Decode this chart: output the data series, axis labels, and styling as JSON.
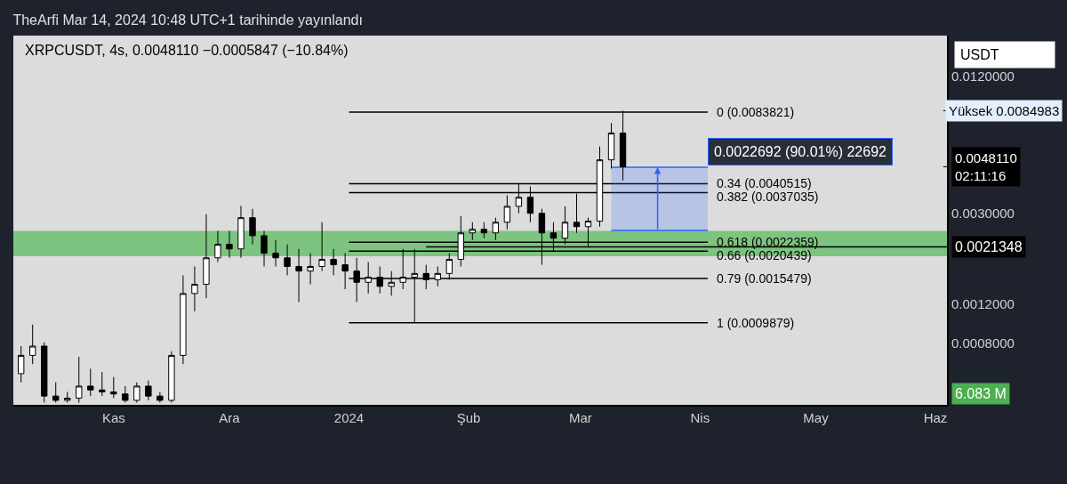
{
  "chart_data": {
    "type": "candlestick",
    "title": "TheArfi Mar 14, 2024 10:48 UTC+1 tarihinde yayınlandı",
    "subtitle": "XRPCUSDT, 4s, 0.0048110 −0.0005847 (−10.84%)",
    "ylabel": "USDT",
    "color": "#000000",
    "x": [
      "2023-10-08",
      "2023-10-11",
      "2023-10-14",
      "2023-10-17",
      "2023-10-20",
      "2023-10-23",
      "2023-10-26",
      "2023-10-29",
      "2023-11-01",
      "2023-11-04",
      "2023-11-07",
      "2023-11-10",
      "2023-11-13",
      "2023-11-16",
      "2023-11-19",
      "2023-11-22",
      "2023-11-25",
      "2023-11-28",
      "2023-12-01",
      "2023-12-04",
      "2023-12-07",
      "2023-12-10",
      "2023-12-13",
      "2023-12-16",
      "2023-12-19",
      "2023-12-22",
      "2023-12-25",
      "2023-12-28",
      "2023-12-31",
      "2024-01-03",
      "2024-01-06",
      "2024-01-09",
      "2024-01-12",
      "2024-01-15",
      "2024-01-18",
      "2024-01-21",
      "2024-01-24",
      "2024-01-27",
      "2024-01-30",
      "2024-02-02",
      "2024-02-05",
      "2024-02-08",
      "2024-02-11",
      "2024-02-14",
      "2024-02-17",
      "2024-02-20",
      "2024-02-23",
      "2024-02-26",
      "2024-02-29",
      "2024-03-03",
      "2024-03-06",
      "2024-03-09",
      "2024-03-12"
    ],
    "ohlc": [
      [
        0.00059,
        0.00078,
        0.00054,
        0.00071
      ],
      [
        0.00071,
        0.00097,
        0.00065,
        0.00078
      ],
      [
        0.00078,
        0.00081,
        0.00044,
        0.00047
      ],
      [
        0.00047,
        0.00054,
        0.00044,
        0.00045
      ],
      [
        0.00045,
        0.00049,
        0.00044,
        0.00046
      ],
      [
        0.00046,
        0.0007,
        0.00044,
        0.00052
      ],
      [
        0.00052,
        0.00062,
        0.00047,
        0.0005
      ],
      [
        0.0005,
        0.0006,
        0.00047,
        0.00049
      ],
      [
        0.00049,
        0.00057,
        0.00046,
        0.00048
      ],
      [
        0.00048,
        0.00052,
        0.00044,
        0.00045
      ],
      [
        0.00045,
        0.00054,
        0.00044,
        0.00052
      ],
      [
        0.00052,
        0.00055,
        0.00045,
        0.00047
      ],
      [
        0.00047,
        0.00049,
        0.00044,
        0.00045
      ],
      [
        0.00045,
        0.00074,
        0.00044,
        0.00071
      ],
      [
        0.00071,
        0.0016,
        0.00065,
        0.00133
      ],
      [
        0.00133,
        0.00175,
        0.00111,
        0.00146
      ],
      [
        0.00146,
        0.00297,
        0.00127,
        0.00191
      ],
      [
        0.00191,
        0.00251,
        0.00183,
        0.00219
      ],
      [
        0.00219,
        0.00251,
        0.00191,
        0.00209
      ],
      [
        0.00209,
        0.00323,
        0.00191,
        0.00287
      ],
      [
        0.00287,
        0.00314,
        0.00219,
        0.00239
      ],
      [
        0.00239,
        0.00251,
        0.00175,
        0.002
      ],
      [
        0.002,
        0.00229,
        0.00175,
        0.00191
      ],
      [
        0.00191,
        0.00219,
        0.0016,
        0.00175
      ],
      [
        0.00175,
        0.00209,
        0.00122,
        0.00167
      ],
      [
        0.00167,
        0.002,
        0.00146,
        0.00175
      ],
      [
        0.00175,
        0.00274,
        0.00167,
        0.00188
      ],
      [
        0.00188,
        0.00209,
        0.0016,
        0.00178
      ],
      [
        0.00178,
        0.002,
        0.00139,
        0.00167
      ],
      [
        0.00167,
        0.00191,
        0.00122,
        0.00149
      ],
      [
        0.00149,
        0.00183,
        0.00133,
        0.00157
      ],
      [
        0.00157,
        0.00175,
        0.00133,
        0.00143
      ],
      [
        0.00143,
        0.00167,
        0.0013,
        0.00149
      ],
      [
        0.00149,
        0.00209,
        0.00139,
        0.00157
      ],
      [
        0.00157,
        0.00209,
        0.0009879,
        0.00163
      ],
      [
        0.00163,
        0.00178,
        0.00139,
        0.00153
      ],
      [
        0.00153,
        0.00175,
        0.00143,
        0.00163
      ],
      [
        0.00163,
        0.002,
        0.00153,
        0.00188
      ],
      [
        0.00188,
        0.00292,
        0.00175,
        0.00246
      ],
      [
        0.00246,
        0.00274,
        0.00229,
        0.00255
      ],
      [
        0.00255,
        0.00274,
        0.00233,
        0.00246
      ],
      [
        0.00246,
        0.00287,
        0.00229,
        0.00274
      ],
      [
        0.00274,
        0.0036,
        0.00255,
        0.00322
      ],
      [
        0.00322,
        0.00408,
        0.003,
        0.00353
      ],
      [
        0.00353,
        0.00394,
        0.00274,
        0.003
      ],
      [
        0.003,
        0.00314,
        0.00178,
        0.00246
      ],
      [
        0.00246,
        0.00274,
        0.00205,
        0.00233
      ],
      [
        0.00233,
        0.00322,
        0.00219,
        0.00274
      ],
      [
        0.00274,
        0.00366,
        0.00246,
        0.00262
      ],
      [
        0.00262,
        0.00287,
        0.00213,
        0.00277
      ],
      [
        0.00277,
        0.00591,
        0.00262,
        0.00516
      ],
      [
        0.00516,
        0.00749,
        0.00472,
        0.00677
      ],
      [
        0.00677,
        0.0084983,
        0.00419,
        0.004811
      ]
    ],
    "series": [
      {
        "type": "line",
        "name": "0 (0.0083821)",
        "color": "#000000",
        "x": [
          "2024-01-01",
          "2024-04-03"
        ],
        "values": [
          0.0083821,
          0.0083821
        ]
      },
      {
        "type": "line",
        "name": "0.34 (0.0040515)",
        "color": "#000000",
        "x": [
          "2024-01-01",
          "2024-04-03"
        ],
        "values": [
          0.0040515,
          0.0040515
        ]
      },
      {
        "type": "line",
        "name": "0.382 (0.0037035)",
        "color": "#000000",
        "x": [
          "2024-01-01",
          "2024-04-03"
        ],
        "values": [
          0.0037035,
          0.0037035
        ]
      },
      {
        "type": "line",
        "name": "0.618 (0.0022359)",
        "color": "#000000",
        "x": [
          "2024-01-01",
          "2024-04-03"
        ],
        "values": [
          0.0022359,
          0.0022359
        ]
      },
      {
        "type": "line",
        "name": "0.66 (0.0020439)",
        "color": "#000000",
        "x": [
          "2024-01-01",
          "2024-04-03"
        ],
        "values": [
          0.0020439,
          0.0020439
        ]
      },
      {
        "type": "line",
        "name": "0.79 (0.0015479)",
        "color": "#000000",
        "x": [
          "2024-01-01",
          "2024-04-03"
        ],
        "values": [
          0.0015479,
          0.0015479
        ]
      },
      {
        "type": "line",
        "name": "1 (0.0009879)",
        "color": "#000000",
        "x": [
          "2024-01-01",
          "2024-04-03"
        ],
        "values": [
          0.0009879,
          0.0009879
        ]
      },
      {
        "type": "line",
        "name": "0.0021348",
        "color": "#000000",
        "x": [
          "2024-01-21",
          "2024-06-04"
        ],
        "values": [
          0.0021348,
          0.0021348
        ]
      },
      {
        "type": "line",
        "name": "0.0022692 (90.01%) 22692",
        "color": "#2962ff",
        "x": [
          "2024-03-09",
          "2024-04-03"
        ],
        "values": [
          0.004791,
          0.004791
        ],
        "lower": [
          0.0025218,
          0.0025218
        ],
        "upper": [
          0.004791,
          0.004791
        ]
      }
    ],
    "bands": [
      {
        "axis": "y",
        "from": 0.00194,
        "to": 0.00251,
        "color": "#7cc47f"
      }
    ],
    "ref_lines": [
      {
        "axis": "y",
        "value": 0.0084983,
        "label": "Yüksek 0.0084983"
      },
      {
        "axis": "y",
        "value": 0.004811,
        "label": "0.0048110\n02:11:16"
      }
    ],
    "annotations": [
      "6.083 M"
    ],
    "xlim": [
      "2023-10-06",
      "2024-06-04"
    ],
    "xticks": [
      {
        "value": "2023-11-01",
        "label": "Kas"
      },
      {
        "value": "2023-12-01",
        "label": "Ara"
      },
      {
        "value": "2024-01-01",
        "label": "2024"
      },
      {
        "value": "2024-02-01",
        "label": "Şub"
      },
      {
        "value": "2024-03-01",
        "label": "Mar"
      },
      {
        "value": "2024-04-01",
        "label": "Nis"
      },
      {
        "value": "2024-05-01",
        "label": "May"
      },
      {
        "value": "2024-06-01",
        "label": "Haz"
      }
    ],
    "ylim": [
      0.00043,
      0.0182
    ],
    "yticks": [
      {
        "value": 0.012,
        "label": "0.0120000"
      },
      {
        "value": 0.003,
        "label": "0.0030000"
      },
      {
        "value": 0.0012,
        "label": "0.0012000"
      },
      {
        "value": 0.0008,
        "label": "0.0008000"
      }
    ],
    "log": true,
    "grid": false,
    "legend": false
  }
}
